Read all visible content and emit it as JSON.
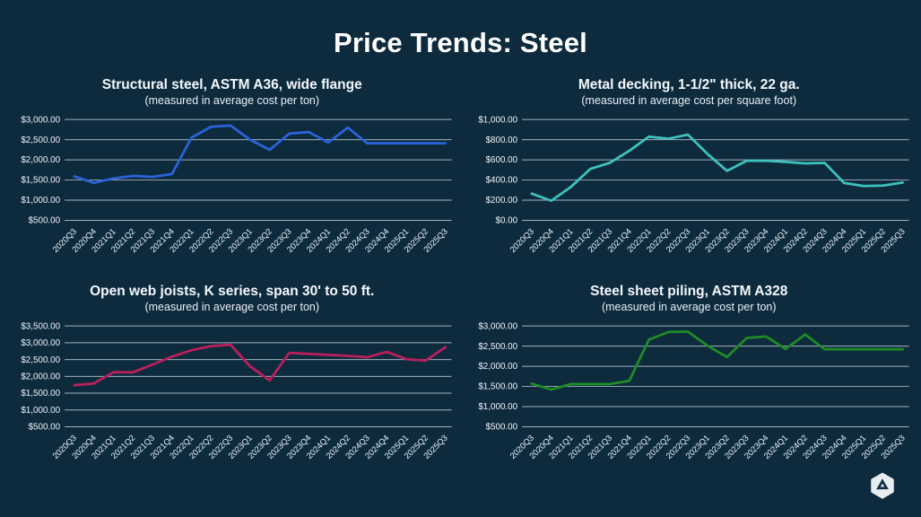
{
  "page": {
    "title": "Price Trends: Steel",
    "background_color": "#0e2b3e"
  },
  "chart_data": [
    {
      "id": "structural-steel",
      "type": "line",
      "title": "Structural steel, ASTM A36, wide flange",
      "subtitle": "(measured in average cost per ton)",
      "color": "#2a63d9",
      "legend": "none",
      "grid": true,
      "ylim": [
        500,
        3000
      ],
      "ytick_labels": [
        "$3,000.00",
        "$2,500.00",
        "$2,000.00",
        "$1,500.00",
        "$1,000.00",
        "$500.00"
      ],
      "categories": [
        "2020Q3",
        "2020Q4",
        "2021Q1",
        "2021Q2",
        "2021Q3",
        "2021Q4",
        "2022Q1",
        "2022Q2",
        "2022Q3",
        "2023Q1",
        "2023Q2",
        "2023Q3",
        "2023Q4",
        "2024Q1",
        "2024Q2",
        "2024Q3",
        "2024Q4",
        "2025Q1",
        "2025Q2",
        "2025Q3"
      ],
      "values": [
        1590,
        1430,
        1540,
        1600,
        1580,
        1650,
        2550,
        2820,
        2850,
        2500,
        2250,
        2650,
        2690,
        2430,
        2800,
        2410,
        2410,
        2410,
        2410,
        2410
      ]
    },
    {
      "id": "metal-decking",
      "type": "line",
      "title": "Metal decking, 1-1/2\" thick, 22 ga.",
      "subtitle": "(measured in average cost per square foot)",
      "color": "#3fc1bd",
      "legend": "none",
      "grid": true,
      "ylim": [
        0,
        1000
      ],
      "ytick_labels": [
        "$1,000.00",
        "$800.00",
        "$600.00",
        "$400.00",
        "$200.00",
        "$0.00"
      ],
      "categories": [
        "2020Q3",
        "2020Q4",
        "2021Q1",
        "2021Q2",
        "2021Q3",
        "2021Q4",
        "2022Q1",
        "2022Q2",
        "2022Q3",
        "2023Q1",
        "2023Q2",
        "2023Q3",
        "2023Q4",
        "2024Q1",
        "2024Q2",
        "2024Q3",
        "2024Q4",
        "2025Q1",
        "2025Q2",
        "2025Q3"
      ],
      "values": [
        265,
        195,
        330,
        510,
        570,
        690,
        830,
        810,
        850,
        660,
        490,
        590,
        590,
        580,
        565,
        570,
        370,
        340,
        345,
        375
      ]
    },
    {
      "id": "open-web-joists",
      "type": "line",
      "title": "Open web joists, K series, span 30' to 50 ft.",
      "subtitle": "(measured in average cost per ton)",
      "color": "#bb1f5c",
      "legend": "none",
      "grid": true,
      "ylim": [
        500,
        3500
      ],
      "ytick_labels": [
        "$3,500.00",
        "$3,000.00",
        "$2,500.00",
        "$2,000.00",
        "$1,500.00",
        "$1,000.00",
        "$500.00"
      ],
      "categories": [
        "2020Q3",
        "2020Q4",
        "2021Q1",
        "2021Q2",
        "2021Q3",
        "2021Q4",
        "2022Q1",
        "2022Q2",
        "2022Q3",
        "2023Q1",
        "2023Q2",
        "2023Q3",
        "2023Q4",
        "2024Q1",
        "2024Q2",
        "2024Q3",
        "2024Q4",
        "2025Q1",
        "2025Q2",
        "2025Q3"
      ],
      "values": [
        1740,
        1790,
        2120,
        2120,
        2350,
        2590,
        2780,
        2900,
        2940,
        2300,
        1880,
        2700,
        2670,
        2640,
        2610,
        2570,
        2730,
        2510,
        2470,
        2870
      ]
    },
    {
      "id": "steel-sheet-piling",
      "type": "line",
      "title": "Steel sheet piling, ASTM A328",
      "subtitle": "(measured in average cost per ton)",
      "color": "#1e8b25",
      "legend": "none",
      "grid": true,
      "ylim": [
        500,
        3000
      ],
      "ytick_labels": [
        "$3,000.00",
        "$2,500.00",
        "$2,000.00",
        "$1,500.00",
        "$1,000.00",
        "$500.00"
      ],
      "categories": [
        "2020Q3",
        "2020Q4",
        "2021Q1",
        "2021Q2",
        "2021Q3",
        "2021Q4",
        "2022Q1",
        "2022Q2",
        "2022Q3",
        "2023Q1",
        "2023Q2",
        "2023Q3",
        "2023Q4",
        "2024Q1",
        "2024Q2",
        "2024Q3",
        "2024Q4",
        "2025Q1",
        "2025Q2",
        "2025Q3"
      ],
      "values": [
        1570,
        1420,
        1560,
        1560,
        1560,
        1640,
        2660,
        2850,
        2860,
        2510,
        2230,
        2700,
        2740,
        2430,
        2790,
        2420,
        2420,
        2420,
        2420,
        2420
      ]
    }
  ]
}
